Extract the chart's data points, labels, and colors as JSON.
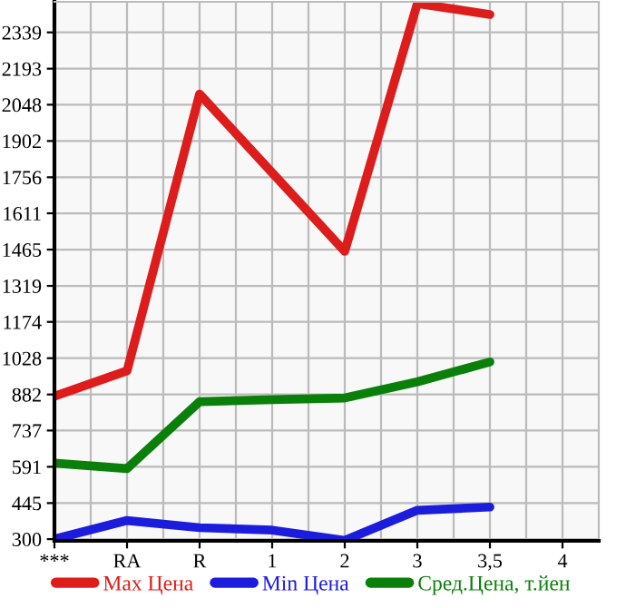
{
  "chart_data": {
    "type": "line",
    "categories": [
      "***",
      "RA",
      "R",
      "1",
      "2",
      "3",
      "3,5",
      "4"
    ],
    "series": [
      {
        "name": "Max Цена",
        "color": "#dd1c1c",
        "values": [
          875,
          977,
          2091,
          1774,
          1458,
          2455,
          2411,
          null
        ]
      },
      {
        "name": "Min Цена",
        "color": "#1c1cdd",
        "values": [
          300,
          375,
          346,
          336,
          295,
          416,
          429,
          null
        ]
      },
      {
        "name": "Сред.Цена, т.йен",
        "color": "#0a800a",
        "values": [
          606,
          584,
          853,
          861,
          868,
          933,
          1013,
          null
        ]
      }
    ],
    "ylim": [
      293,
      2462
    ],
    "yticks": [
      300,
      445,
      591,
      737,
      882,
      1028,
      1174,
      1319,
      1465,
      1611,
      1756,
      1902,
      2048,
      2193,
      2339
    ],
    "grid": true,
    "legend": "bottom",
    "marker": "none",
    "line_style": "solid"
  }
}
